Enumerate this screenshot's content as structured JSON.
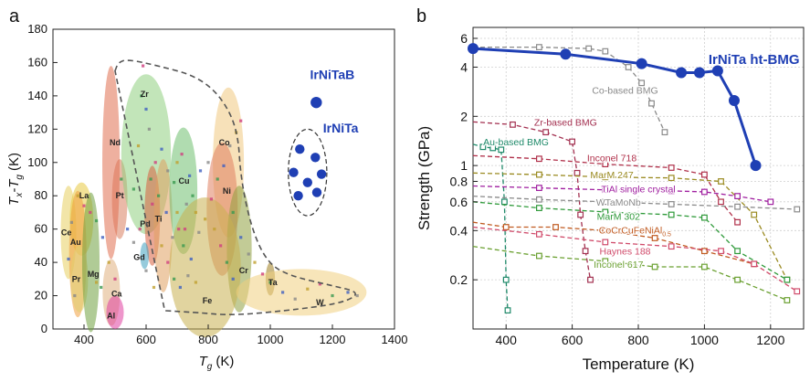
{
  "colors": {
    "blue": "#1f3fb4",
    "axis": "#222222",
    "grid": "#cfcfcf",
    "envelope": "#555555",
    "gray_bmg": "#8a8a8a",
    "zr_bmg": "#a33050",
    "au_bmg": "#1f8a6a",
    "inconel718": "#b0304a",
    "marm247": "#9a8a20",
    "tial": "#a020a0",
    "wtamonb": "#8a8a8a",
    "marm302": "#2f9a3a",
    "cocrcufeni": "#c05a20",
    "haynes188": "#d04a6a",
    "inconel617": "#6aa030"
  },
  "chart_data": [
    {
      "panel_label": "a",
      "type": "scatter",
      "xlabel_main": "T",
      "xlabel_sub": "g",
      "xlabel_unit": "(K)",
      "ylabel_parts": [
        "T",
        "x",
        "-T",
        "g",
        "(K)"
      ],
      "xlim": [
        300,
        1400
      ],
      "ylim": [
        0,
        180
      ],
      "xticks": [
        400,
        600,
        800,
        1000,
        1200,
        1400
      ],
      "yticks": [
        0,
        20,
        40,
        60,
        80,
        100,
        120,
        140,
        160,
        180
      ],
      "regions": [
        {
          "label": "Ce",
          "cx": 350,
          "cy": 58,
          "rx": 25,
          "ry": 28,
          "color": "#e8d060",
          "lx": 343,
          "ly": 58
        },
        {
          "label": "La",
          "cx": 392,
          "cy": 66,
          "rx": 38,
          "ry": 22,
          "color": "#e8c840",
          "lx": 400,
          "ly": 80
        },
        {
          "label": "Au",
          "cx": 380,
          "cy": 45,
          "rx": 28,
          "ry": 38,
          "color": "#f0a040",
          "lx": 373,
          "ly": 52
        },
        {
          "label": "Pr",
          "cx": 385,
          "cy": 30,
          "rx": 28,
          "ry": 20,
          "color": "#e0d070",
          "lx": 375,
          "ly": 30
        },
        {
          "label": "Mg",
          "cx": 422,
          "cy": 40,
          "rx": 28,
          "ry": 42,
          "color": "#70a040",
          "lx": 430,
          "ly": 33
        },
        {
          "label": "Ca",
          "cx": 488,
          "cy": 22,
          "rx": 28,
          "ry": 20,
          "color": "#e0b080",
          "lx": 505,
          "ly": 21
        },
        {
          "label": "Al",
          "cx": 500,
          "cy": 10,
          "rx": 28,
          "ry": 10,
          "color": "#e040a0",
          "lx": 487,
          "ly": 8
        },
        {
          "label": "Pt",
          "cx": 515,
          "cy": 78,
          "rx": 25,
          "ry": 24,
          "color": "#d88060",
          "lx": 515,
          "ly": 80
        },
        {
          "label": "Nd",
          "cx": 487,
          "cy": 100,
          "rx": 28,
          "ry": 58,
          "color": "#e07050",
          "lx": 500,
          "ly": 112
        },
        {
          "label": "Zr",
          "cx": 600,
          "cy": 105,
          "rx": 80,
          "ry": 48,
          "color": "#90d080",
          "lx": 595,
          "ly": 141
        },
        {
          "label": "Pd",
          "cx": 620,
          "cy": 68,
          "rx": 25,
          "ry": 30,
          "color": "#d86040",
          "lx": 597,
          "ly": 63
        },
        {
          "label": "Ti",
          "cx": 655,
          "cy": 62,
          "rx": 30,
          "ry": 40,
          "color": "#e0a060",
          "lx": 640,
          "ly": 66
        },
        {
          "label": "Cu",
          "cx": 720,
          "cy": 83,
          "rx": 45,
          "ry": 38,
          "color": "#70c070",
          "lx": 722,
          "ly": 89
        },
        {
          "label": "Gd",
          "cx": 595,
          "cy": 44,
          "rx": 14,
          "ry": 8,
          "color": "#40a0c0",
          "lx": 578,
          "ly": 43
        },
        {
          "label": "Co",
          "cx": 865,
          "cy": 100,
          "rx": 50,
          "ry": 45,
          "color": "#f0c880",
          "lx": 852,
          "ly": 112
        },
        {
          "label": "Ni",
          "cx": 845,
          "cy": 72,
          "rx": 50,
          "ry": 40,
          "color": "#e08060",
          "lx": 860,
          "ly": 83
        },
        {
          "label": "Cr",
          "cx": 900,
          "cy": 48,
          "rx": 40,
          "ry": 38,
          "color": "#90a040",
          "lx": 914,
          "ly": 35
        },
        {
          "label": "Ta",
          "cx": 1000,
          "cy": 30,
          "rx": 15,
          "ry": 10,
          "color": "#a08020",
          "lx": 1008,
          "ly": 28
        },
        {
          "label": "Fe",
          "cx": 790,
          "cy": 37,
          "rx": 115,
          "ry": 42,
          "color": "#c8b050",
          "lx": 797,
          "ly": 17
        },
        {
          "label": "W",
          "cx": 1100,
          "cy": 22,
          "rx": 210,
          "ry": 14,
          "color": "#f0d080",
          "lx": 1160,
          "ly": 16
        }
      ],
      "small_points": [
        [
          590,
          158
        ],
        [
          585,
          140
        ],
        [
          600,
          132
        ],
        [
          610,
          120
        ],
        [
          575,
          110
        ],
        [
          630,
          100
        ],
        [
          615,
          90
        ],
        [
          650,
          108
        ],
        [
          670,
          95
        ],
        [
          700,
          100
        ],
        [
          715,
          105
        ],
        [
          690,
          88
        ],
        [
          740,
          92
        ],
        [
          730,
          75
        ],
        [
          760,
          70
        ],
        [
          705,
          60
        ],
        [
          720,
          50
        ],
        [
          745,
          42
        ],
        [
          770,
          58
        ],
        [
          790,
          66
        ],
        [
          810,
          78
        ],
        [
          830,
          90
        ],
        [
          850,
          98
        ],
        [
          870,
          110
        ],
        [
          890,
          118
        ],
        [
          905,
          125
        ],
        [
          880,
          70
        ],
        [
          905,
          55
        ],
        [
          930,
          45
        ],
        [
          950,
          40
        ],
        [
          975,
          33
        ],
        [
          1000,
          28
        ],
        [
          1040,
          22
        ],
        [
          1080,
          18
        ],
        [
          1120,
          24
        ],
        [
          1160,
          27
        ],
        [
          1200,
          20
        ],
        [
          1250,
          22
        ],
        [
          1280,
          20
        ],
        [
          650,
          50
        ],
        [
          670,
          40
        ],
        [
          690,
          30
        ],
        [
          710,
          25
        ],
        [
          735,
          32
        ],
        [
          760,
          28
        ],
        [
          420,
          70
        ],
        [
          440,
          65
        ],
        [
          460,
          55
        ],
        [
          360,
          64
        ],
        [
          380,
          80
        ],
        [
          400,
          74
        ],
        [
          520,
          90
        ],
        [
          540,
          60
        ],
        [
          560,
          52
        ],
        [
          480,
          40
        ],
        [
          500,
          30
        ],
        [
          455,
          25
        ],
        [
          350,
          42
        ],
        [
          370,
          20
        ],
        [
          440,
          28
        ],
        [
          620,
          75
        ],
        [
          640,
          80
        ],
        [
          665,
          70
        ],
        [
          685,
          55
        ],
        [
          700,
          70
        ],
        [
          725,
          60
        ],
        [
          750,
          80
        ],
        [
          775,
          95
        ],
        [
          800,
          100
        ],
        [
          820,
          60
        ],
        [
          840,
          50
        ],
        [
          860,
          40
        ],
        [
          880,
          30
        ],
        [
          600,
          35
        ],
        [
          625,
          25
        ],
        [
          580,
          60
        ],
        [
          560,
          84
        ]
      ],
      "envelope_points": [
        [
          500,
          155
        ],
        [
          510,
          160
        ],
        [
          540,
          162
        ],
        [
          640,
          158
        ],
        [
          760,
          152
        ],
        [
          840,
          140
        ],
        [
          895,
          120
        ],
        [
          905,
          90
        ],
        [
          940,
          60
        ],
        [
          990,
          40
        ],
        [
          1060,
          32
        ],
        [
          1200,
          26
        ],
        [
          1290,
          22
        ],
        [
          1240,
          16
        ],
        [
          1100,
          12
        ],
        [
          880,
          8
        ],
        [
          760,
          10
        ],
        [
          560,
          12
        ]
      ],
      "irnitab": {
        "label": "IrNiTaB",
        "points": [
          [
            1148,
            136
          ]
        ]
      },
      "irnita": {
        "label": "IrNiTa",
        "points": [
          [
            1095,
            108
          ],
          [
            1145,
            103
          ],
          [
            1075,
            94
          ],
          [
            1165,
            93
          ],
          [
            1120,
            88
          ],
          [
            1090,
            80
          ],
          [
            1150,
            82
          ]
        ],
        "ellipse": {
          "cx": 1120,
          "cy": 94,
          "rx": 62,
          "ry": 26
        }
      }
    },
    {
      "panel_label": "b",
      "type": "line",
      "xlabel": "Temperature (K)",
      "ylabel": "Strength (GPa)",
      "xlim": [
        300,
        1300
      ],
      "ylim": [
        0.1,
        7
      ],
      "yscale": "log",
      "xticks": [
        400,
        600,
        800,
        1000,
        1200
      ],
      "yticks": [
        0.2,
        0.4,
        0.6,
        0.8,
        1,
        2,
        4,
        6
      ],
      "ytick_labels": [
        "0.2",
        "0.4",
        "0.6",
        "0.8",
        "1",
        "2",
        "4",
        "6"
      ],
      "series": [
        {
          "name": "IrNiTa ht-BMG",
          "color_key": "blue",
          "x": [
            300,
            580,
            810,
            930,
            985,
            1040,
            1090,
            1155
          ],
          "y": [
            5.2,
            4.8,
            4.2,
            3.7,
            3.7,
            3.8,
            2.5,
            1.0
          ]
        },
        {
          "name": "Co-based BMG",
          "color_key": "gray_bmg",
          "x": [
            300,
            500,
            650,
            700,
            770,
            810,
            840,
            880
          ],
          "y": [
            5.3,
            5.3,
            5.2,
            5.0,
            4.0,
            3.2,
            2.4,
            1.6
          ]
        },
        {
          "name": "Zr-based BMG",
          "color_key": "zr_bmg",
          "x": [
            300,
            420,
            520,
            600,
            615,
            625,
            640,
            655
          ],
          "y": [
            1.85,
            1.78,
            1.6,
            1.4,
            0.9,
            0.5,
            0.3,
            0.2
          ]
        },
        {
          "name": "Au-based BMG",
          "color_key": "au_bmg",
          "x": [
            300,
            330,
            360,
            385,
            395,
            400,
            405
          ],
          "y": [
            1.35,
            1.3,
            1.28,
            1.25,
            0.6,
            0.2,
            0.13
          ]
        },
        {
          "name": "Inconel 718",
          "color_key": "inconel718",
          "x": [
            300,
            500,
            700,
            900,
            1000,
            1050,
            1100
          ],
          "y": [
            1.15,
            1.1,
            1.02,
            0.97,
            0.88,
            0.6,
            0.45
          ]
        },
        {
          "name": "MarM 247",
          "color_key": "marm247",
          "x": [
            300,
            500,
            700,
            900,
            1050,
            1150,
            1250
          ],
          "y": [
            0.9,
            0.88,
            0.85,
            0.84,
            0.8,
            0.5,
            0.2
          ]
        },
        {
          "name": "TiAl single crystal",
          "color_key": "tial",
          "x": [
            300,
            500,
            700,
            900,
            1000,
            1100,
            1200
          ],
          "y": [
            0.75,
            0.73,
            0.71,
            0.7,
            0.69,
            0.65,
            0.6
          ]
        },
        {
          "name": "WTaMoNb",
          "color_key": "wtamonb",
          "x": [
            300,
            500,
            700,
            900,
            1100,
            1280
          ],
          "y": [
            0.65,
            0.62,
            0.6,
            0.58,
            0.56,
            0.54
          ]
        },
        {
          "name": "MarM 302",
          "color_key": "marm302",
          "x": [
            300,
            500,
            700,
            900,
            1000,
            1100,
            1250
          ],
          "y": [
            0.6,
            0.55,
            0.52,
            0.5,
            0.48,
            0.3,
            0.2
          ]
        },
        {
          "name": "CoCrCuFeNiAl0.5",
          "color_key": "cocrcufeni",
          "x": [
            300,
            400,
            550,
            700,
            850,
            1000,
            1150
          ],
          "y": [
            0.45,
            0.42,
            0.42,
            0.4,
            0.36,
            0.3,
            0.25
          ]
        },
        {
          "name": "Haynes 188",
          "color_key": "haynes188",
          "x": [
            300,
            500,
            700,
            900,
            1050,
            1150,
            1280
          ],
          "y": [
            0.42,
            0.38,
            0.34,
            0.32,
            0.3,
            0.25,
            0.17
          ]
        },
        {
          "name": "Inconel 617",
          "color_key": "inconel617",
          "x": [
            300,
            500,
            700,
            850,
            1000,
            1100,
            1250
          ],
          "y": [
            0.32,
            0.28,
            0.26,
            0.24,
            0.24,
            0.2,
            0.15
          ]
        }
      ],
      "labels": [
        {
          "text": "IrNiTa ht-BMG",
          "color_key": "blue",
          "x": 1150,
          "y": 4.4,
          "big": true
        },
        {
          "text": "Co-based BMG",
          "color_key": "gray_bmg",
          "x": 760,
          "y": 2.9
        },
        {
          "text": "Zr-based BMG",
          "color_key": "zr_bmg",
          "x": 580,
          "y": 1.85
        },
        {
          "text": "Au-based BMG",
          "color_key": "au_bmg",
          "x": 430,
          "y": 1.4
        },
        {
          "text": "Inconel 718",
          "color_key": "inconel718",
          "x": 720,
          "y": 1.12
        },
        {
          "text": "MarM 247",
          "color_key": "marm247",
          "x": 720,
          "y": 0.88
        },
        {
          "text": "TiAl single crystal",
          "color_key": "tial",
          "x": 800,
          "y": 0.72
        },
        {
          "text": "WTaMoNb",
          "color_key": "wtamonb",
          "x": 740,
          "y": 0.6
        },
        {
          "text": "MarM 302",
          "color_key": "marm302",
          "x": 740,
          "y": 0.49
        },
        {
          "text": "CoCrCuFeNiAl",
          "sub": "0.5",
          "color_key": "cocrcufeni",
          "x": 790,
          "y": 0.405
        },
        {
          "text": "Haynes 188",
          "color_key": "haynes188",
          "x": 760,
          "y": 0.3
        },
        {
          "text": "Inconel 617",
          "color_key": "inconel617",
          "x": 740,
          "y": 0.25
        }
      ]
    }
  ]
}
